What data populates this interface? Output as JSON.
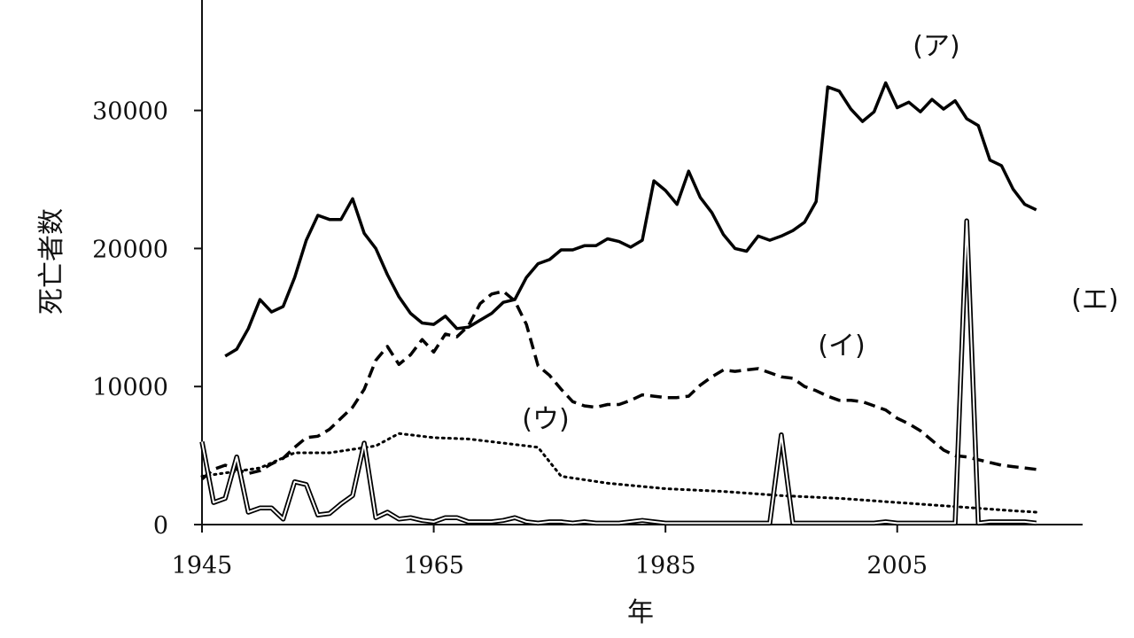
{
  "chart_data": {
    "type": "line",
    "title": "",
    "xlabel": "年",
    "ylabel": "死亡者数",
    "xlim": [
      1945,
      2021
    ],
    "ylim": [
      0,
      38000
    ],
    "x_ticks": [
      1945,
      1965,
      1985,
      2005
    ],
    "y_ticks": [
      0,
      10000,
      20000,
      30000
    ],
    "grid": false,
    "legend": "none",
    "series": [
      {
        "name": "(ア)",
        "style": "solid",
        "color": "#000000",
        "x": [
          1947,
          1948,
          1949,
          1950,
          1951,
          1952,
          1953,
          1954,
          1955,
          1956,
          1957,
          1958,
          1959,
          1960,
          1961,
          1962,
          1963,
          1964,
          1965,
          1966,
          1967,
          1968,
          1969,
          1970,
          1971,
          1972,
          1973,
          1974,
          1975,
          1976,
          1977,
          1978,
          1979,
          1980,
          1981,
          1982,
          1983,
          1984,
          1985,
          1986,
          1987,
          1988,
          1989,
          1990,
          1991,
          1992,
          1993,
          1994,
          1995,
          1996,
          1997,
          1998,
          1999,
          2000,
          2001,
          2002,
          2003,
          2004,
          2005,
          2006,
          2007,
          2008,
          2009,
          2010,
          2011,
          2012,
          2013,
          2014,
          2015,
          2016,
          2017
        ],
        "y": [
          12200,
          12700,
          14200,
          16300,
          15400,
          15800,
          17900,
          20600,
          22400,
          22100,
          22100,
          23600,
          21100,
          20000,
          18100,
          16500,
          15300,
          14600,
          14500,
          15100,
          14200,
          14300,
          14800,
          15300,
          16100,
          16300,
          17900,
          18900,
          19200,
          19900,
          19900,
          20200,
          20200,
          20700,
          20500,
          20100,
          20600,
          24900,
          24200,
          23200,
          25600,
          23700,
          22600,
          21000,
          20000,
          19800,
          20900,
          20600,
          20900,
          21300,
          21900,
          23400,
          31700,
          31400,
          30100,
          29200,
          29900,
          32000,
          30200,
          30600,
          29900,
          30800,
          30100,
          30700,
          29400,
          28900,
          26400,
          26000,
          24300,
          23200,
          22800
        ]
      },
      {
        "name": "(イ)",
        "style": "dashed",
        "color": "#000000",
        "x": [
          1945,
          1946,
          1947,
          1948,
          1949,
          1950,
          1951,
          1952,
          1953,
          1954,
          1955,
          1956,
          1957,
          1958,
          1959,
          1960,
          1961,
          1962,
          1963,
          1964,
          1965,
          1966,
          1967,
          1968,
          1969,
          1970,
          1971,
          1972,
          1973,
          1974,
          1975,
          1976,
          1977,
          1978,
          1979,
          1980,
          1981,
          1982,
          1983,
          1984,
          1985,
          1986,
          1987,
          1988,
          1989,
          1990,
          1991,
          1992,
          1993,
          1994,
          1995,
          1996,
          1997,
          1998,
          1999,
          2000,
          2001,
          2002,
          2003,
          2004,
          2005,
          2006,
          2007,
          2008,
          2009,
          2010,
          2011,
          2012,
          2013,
          2014,
          2015,
          2016,
          2017
        ],
        "y": [
          3300,
          4000,
          4300,
          4000,
          3700,
          3900,
          4400,
          4800,
          5600,
          6300,
          6400,
          6900,
          7700,
          8500,
          9800,
          11900,
          12900,
          11600,
          12300,
          13400,
          12500,
          13800,
          13600,
          14400,
          16000,
          16700,
          16900,
          16200,
          14500,
          11500,
          10800,
          9800,
          8900,
          8600,
          8500,
          8700,
          8700,
          9000,
          9400,
          9300,
          9200,
          9200,
          9300,
          10100,
          10700,
          11200,
          11100,
          11200,
          11300,
          11000,
          10700,
          10600,
          10000,
          9700,
          9300,
          9000,
          9000,
          8900,
          8600,
          8300,
          7700,
          7300,
          6800,
          6100,
          5400,
          5000,
          4900,
          4700,
          4500,
          4300,
          4200,
          4100,
          4000
        ]
      },
      {
        "name": "(ウ)",
        "style": "dotted",
        "color": "#000000",
        "x": [
          1945,
          1950,
          1953,
          1956,
          1960,
          1962,
          1965,
          1968,
          1970,
          1972,
          1974,
          1976,
          1980,
          1985,
          1990,
          1995,
          2000,
          2005,
          2010,
          2015,
          2017
        ],
        "y": [
          3500,
          4100,
          5200,
          5200,
          5700,
          6600,
          6300,
          6200,
          6000,
          5800,
          5600,
          3500,
          3000,
          2600,
          2400,
          2100,
          1900,
          1600,
          1300,
          1000,
          900
        ]
      },
      {
        "name": "(エ)",
        "style": "double",
        "color": "#000000",
        "x": [
          1945,
          1946,
          1947,
          1948,
          1949,
          1950,
          1951,
          1952,
          1953,
          1954,
          1955,
          1956,
          1957,
          1958,
          1959,
          1960,
          1961,
          1962,
          1963,
          1964,
          1965,
          1966,
          1967,
          1968,
          1969,
          1970,
          1971,
          1972,
          1973,
          1974,
          1975,
          1976,
          1977,
          1978,
          1979,
          1980,
          1981,
          1982,
          1983,
          1984,
          1985,
          1986,
          1987,
          1988,
          1989,
          1990,
          1991,
          1992,
          1993,
          1994,
          1995,
          1996,
          1997,
          1998,
          1999,
          2000,
          2001,
          2002,
          2003,
          2004,
          2005,
          2006,
          2007,
          2008,
          2009,
          2010,
          2011,
          2012,
          2013,
          2014,
          2015,
          2016,
          2017
        ],
        "y": [
          6000,
          1600,
          1900,
          4900,
          900,
          1200,
          1200,
          400,
          3100,
          2900,
          700,
          800,
          1500,
          2100,
          5900,
          500,
          900,
          400,
          500,
          300,
          200,
          500,
          500,
          200,
          200,
          200,
          300,
          500,
          200,
          100,
          200,
          200,
          100,
          200,
          100,
          100,
          100,
          200,
          300,
          200,
          100,
          100,
          100,
          100,
          100,
          100,
          100,
          100,
          100,
          100,
          6500,
          100,
          100,
          100,
          100,
          100,
          100,
          100,
          100,
          200,
          100,
          100,
          100,
          100,
          100,
          100,
          22000,
          100,
          200,
          200,
          200,
          200,
          100
        ]
      }
    ]
  }
}
